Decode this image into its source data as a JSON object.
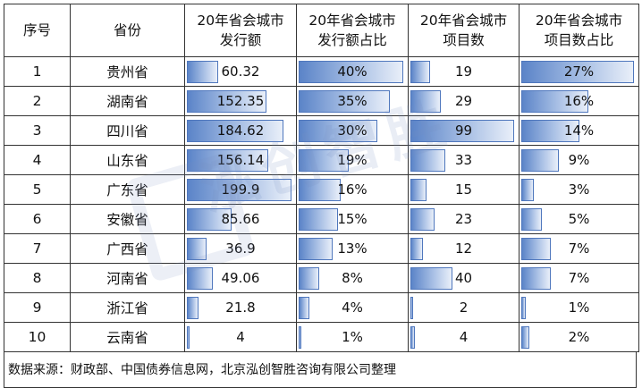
{
  "headers": [
    "序号",
    "省份",
    "20年省会城市\n发行额",
    "20年省会城市\n发行额占比",
    "20年省会城市\n项目数",
    "20年省会城市\n项目数占比"
  ],
  "rows": [
    {
      "idx": "1",
      "province": "贵州省",
      "amount": "60.32",
      "amount_share": "40%",
      "count": "19",
      "count_share": "27%"
    },
    {
      "idx": "2",
      "province": "湖南省",
      "amount": "152.35",
      "amount_share": "35%",
      "count": "29",
      "count_share": "16%"
    },
    {
      "idx": "3",
      "province": "四川省",
      "amount": "184.62",
      "amount_share": "30%",
      "count": "99",
      "count_share": "14%"
    },
    {
      "idx": "4",
      "province": "山东省",
      "amount": "156.14",
      "amount_share": "19%",
      "count": "33",
      "count_share": "9%"
    },
    {
      "idx": "5",
      "province": "广东省",
      "amount": "199.9",
      "amount_share": "16%",
      "count": "15",
      "count_share": "3%"
    },
    {
      "idx": "6",
      "province": "安徽省",
      "amount": "85.66",
      "amount_share": "15%",
      "count": "23",
      "count_share": "5%"
    },
    {
      "idx": "7",
      "province": "广西省",
      "amount": "36.9",
      "amount_share": "13%",
      "count": "12",
      "count_share": "7%"
    },
    {
      "idx": "8",
      "province": "河南省",
      "amount": "49.06",
      "amount_share": "8%",
      "count": "40",
      "count_share": "7%"
    },
    {
      "idx": "9",
      "province": "浙江省",
      "amount": "21.8",
      "amount_share": "4%",
      "count": "2",
      "count_share": "1%"
    },
    {
      "idx": "10",
      "province": "云南省",
      "amount": "4",
      "amount_share": "1%",
      "count": "4",
      "count_share": "2%"
    }
  ],
  "source": "数据来源：财政部、中国债券信息网，北京泓创智胜咨询有限公司整理",
  "watermark": "泓创智胜",
  "bar_color": "#5b84c8"
}
